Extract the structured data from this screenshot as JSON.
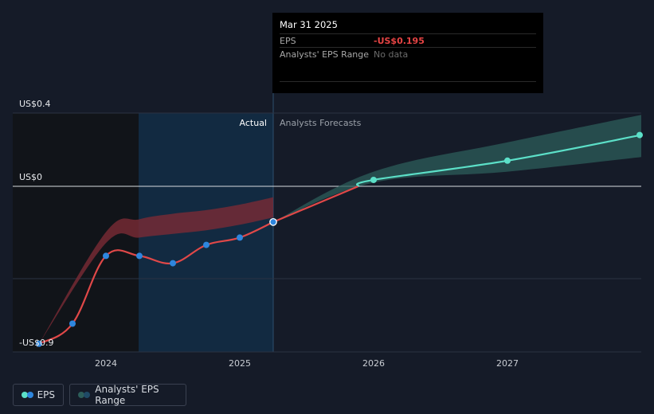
{
  "tooltip": {
    "date": "Mar 31 2025",
    "eps_label": "EPS",
    "eps_value": "-US$0.195",
    "range_label": "Analysts' EPS Range",
    "range_value": "No data"
  },
  "legend": {
    "eps_label": "EPS",
    "range_label": "Analysts' EPS Range"
  },
  "colors": {
    "background": "#151b28",
    "actual_line": "#e04848",
    "actual_point": "#2e86de",
    "forecast_line": "#5ce0c8",
    "actual_band": "#7a2a34",
    "forecast_band": "#2c5e5a",
    "highlight_region": "#12304a",
    "past_region": "#111419"
  },
  "chart_data": {
    "type": "line",
    "title": "",
    "xlabel": "",
    "ylabel": "",
    "ylim": [
      -0.9,
      0.4
    ],
    "y_ticks": [
      {
        "value": 0.4,
        "label": "US$0.4"
      },
      {
        "value": 0,
        "label": "US$0"
      },
      {
        "value": -0.9,
        "label": "-US$0.9"
      }
    ],
    "x_ticks": [
      "2024",
      "2025",
      "2026",
      "2027"
    ],
    "region_labels": {
      "actual": "Actual",
      "forecast": "Analysts Forecasts"
    },
    "grid": true,
    "series": [
      {
        "name": "EPS",
        "kind": "actual",
        "points": [
          {
            "x": 2023.5,
            "y": -0.86
          },
          {
            "x": 2023.75,
            "y": -0.75
          },
          {
            "x": 2024.0,
            "y": -0.38
          },
          {
            "x": 2024.25,
            "y": -0.38
          },
          {
            "x": 2024.5,
            "y": -0.42
          },
          {
            "x": 2024.75,
            "y": -0.32
          },
          {
            "x": 2025.0,
            "y": -0.28
          },
          {
            "x": 2025.25,
            "y": -0.195
          }
        ]
      },
      {
        "name": "EPS",
        "kind": "forecast",
        "points": [
          {
            "x": 2025.25,
            "y": -0.195
          },
          {
            "x": 2026.0,
            "y": 0.035
          },
          {
            "x": 2027.0,
            "y": 0.14
          },
          {
            "x": 2028.0,
            "y": 0.28
          }
        ]
      }
    ],
    "ranges": [
      {
        "name": "Analysts' EPS Range",
        "kind": "actual",
        "x": [
          2023.5,
          2024.0,
          2024.25,
          2024.5,
          2024.75,
          2025.0,
          2025.25
        ],
        "low": [
          -0.86,
          -0.31,
          -0.28,
          -0.26,
          -0.24,
          -0.21,
          -0.17
        ],
        "high": [
          -0.86,
          -0.25,
          -0.18,
          -0.15,
          -0.13,
          -0.1,
          -0.06
        ]
      },
      {
        "name": "Analysts' EPS Range",
        "kind": "forecast",
        "x": [
          2025.25,
          2026.0,
          2027.0,
          2028.0
        ],
        "low": [
          -0.195,
          0.02,
          0.08,
          0.16
        ],
        "high": [
          -0.195,
          0.08,
          0.24,
          0.39
        ]
      }
    ]
  }
}
